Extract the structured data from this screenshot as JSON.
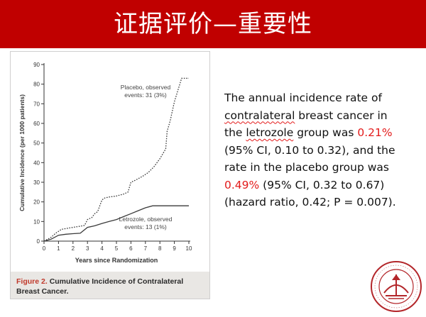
{
  "slide": {
    "title": "证据评价—重要性"
  },
  "figure": {
    "caption_label": "Figure 2.",
    "caption_text": "Cumulative Incidence of Contralateral Breast Cancer."
  },
  "chart_data": {
    "type": "line",
    "xlabel": "Years since Randomization",
    "ylabel": "Cumulative Incidence (per 1000 patients)",
    "xlim": [
      0,
      10
    ],
    "ylim": [
      0,
      90
    ],
    "xticks": [
      "0",
      "1",
      "2",
      "3",
      "4",
      "5",
      "6",
      "7",
      "8",
      "9",
      "10"
    ],
    "yticks": [
      "0",
      "10",
      "20",
      "30",
      "40",
      "50",
      "60",
      "70",
      "80",
      "90"
    ],
    "grid": false,
    "series": [
      {
        "name": "Placebo",
        "style": "dotted",
        "annotation": [
          "Placebo, observed",
          "events: 31 (3%)"
        ],
        "points": [
          [
            0,
            0
          ],
          [
            0.5,
            2
          ],
          [
            0.8,
            4
          ],
          [
            1,
            5
          ],
          [
            1.2,
            6
          ],
          [
            1.6,
            6.5
          ],
          [
            2,
            7
          ],
          [
            2.4,
            7.5
          ],
          [
            2.8,
            8
          ],
          [
            3,
            11
          ],
          [
            3.3,
            12
          ],
          [
            3.5,
            14
          ],
          [
            3.7,
            15
          ],
          [
            4,
            21
          ],
          [
            4.2,
            22
          ],
          [
            4.5,
            22.5
          ],
          [
            5,
            23
          ],
          [
            5.5,
            24
          ],
          [
            5.8,
            25
          ],
          [
            6,
            30
          ],
          [
            6.3,
            31
          ],
          [
            6.8,
            33
          ],
          [
            7.2,
            35
          ],
          [
            7.6,
            38
          ],
          [
            8,
            42
          ],
          [
            8.4,
            47
          ],
          [
            8.5,
            56
          ],
          [
            8.7,
            61
          ],
          [
            9,
            71
          ],
          [
            9.5,
            83
          ],
          [
            10,
            83
          ]
        ]
      },
      {
        "name": "Letrozole",
        "style": "solid",
        "annotation": [
          "Letrozole, observed",
          "events: 13 (1%)"
        ],
        "points": [
          [
            0,
            0
          ],
          [
            0.5,
            1
          ],
          [
            1,
            3
          ],
          [
            1.5,
            3.5
          ],
          [
            2,
            3.8
          ],
          [
            2.5,
            4
          ],
          [
            3,
            7
          ],
          [
            3.5,
            7.8
          ],
          [
            4,
            9
          ],
          [
            4.5,
            10
          ],
          [
            5,
            11
          ],
          [
            5.5,
            12.5
          ],
          [
            6,
            14
          ],
          [
            6.5,
            15.5
          ],
          [
            7,
            17
          ],
          [
            7.5,
            18
          ],
          [
            8,
            18
          ],
          [
            8.5,
            18
          ],
          [
            9,
            18
          ],
          [
            9.5,
            18
          ],
          [
            10,
            18
          ]
        ]
      }
    ]
  },
  "summary": {
    "t1": "The annual incidence rate of",
    "t2a": "contralateral",
    "t2b": " breast cancer in",
    "t3a": "the ",
    "t3b": "letrozole",
    "t3c": " group was ",
    "t3d": "0.21%",
    "t4": "(95% CI, 0.10 to 0.32), and the",
    "t5": "rate in the placebo group was",
    "t6a": "0.49%",
    "t6b": " (95% CI, 0.32 to 0.67)",
    "t7": "(hazard ratio, 0.42; P = 0.007)."
  },
  "colors": {
    "title_bar": "#c00000",
    "highlight": "#e31b1b",
    "caption_bg": "#e9e7e4",
    "seal": "#b3262a"
  }
}
